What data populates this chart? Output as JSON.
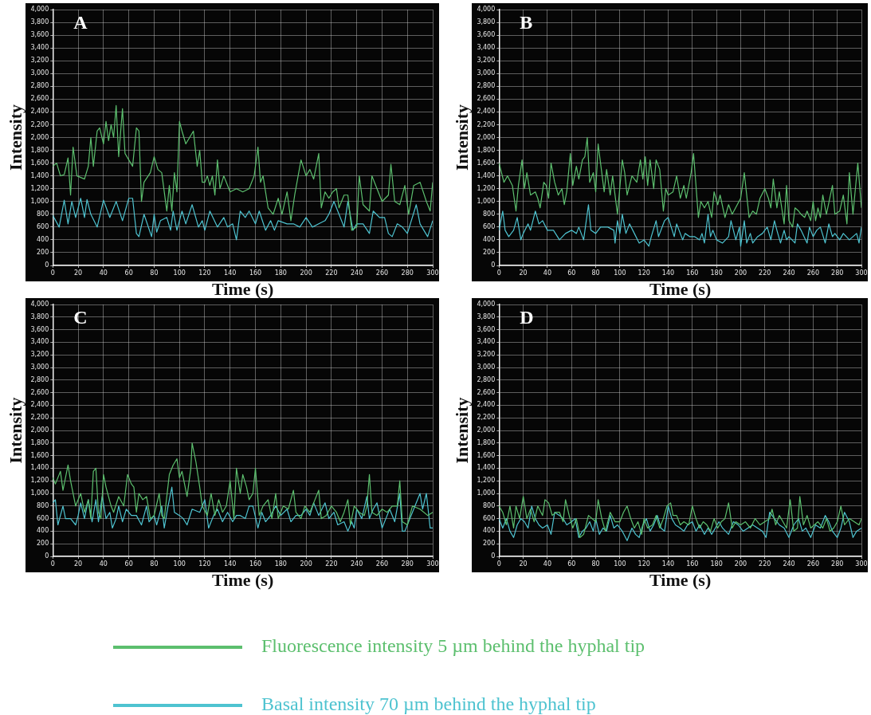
{
  "chart_data": [
    {
      "type": "line",
      "title": "A",
      "xlabel": "Time (s)",
      "ylabel": "Intensity",
      "xlim": [
        0,
        300
      ],
      "xticks": [
        0,
        20,
        40,
        60,
        80,
        100,
        120,
        140,
        160,
        180,
        200,
        220,
        240,
        260,
        280,
        300
      ],
      "ylim": [
        0,
        4000
      ],
      "yticks": [
        0,
        200,
        400,
        600,
        800,
        {
          "value": 1000,
          "label": "1,000"
        },
        {
          "value": 1200,
          "label": "1,200"
        },
        {
          "value": 1400,
          "label": "1,400"
        },
        {
          "value": 1600,
          "label": "1,600"
        },
        {
          "value": 1800,
          "label": "1,800"
        },
        {
          "value": 2000,
          "label": "2,000"
        },
        {
          "value": 2200,
          "label": "2,200"
        },
        {
          "value": 2400,
          "label": "2,400"
        },
        {
          "value": 2600,
          "label": "2,600"
        },
        {
          "value": 2800,
          "label": "2,800"
        },
        {
          "value": 3000,
          "label": "3,000"
        },
        {
          "value": 3200,
          "label": "3,200"
        },
        {
          "value": 3400,
          "label": "3,400"
        },
        {
          "value": 3600,
          "label": "3,600"
        },
        {
          "value": 3800,
          "label": "3,800"
        },
        {
          "value": 4000,
          "label": "4,000"
        }
      ],
      "grid": true,
      "marker": "none",
      "line_style": "solid",
      "legend": "bottom",
      "series": [
        {
          "name": "Fluorescence intensity 5 µm behind the hyphal tip",
          "color": "#5cbf6e",
          "x": [
            0,
            3,
            6,
            9,
            12,
            14,
            16,
            19,
            25,
            28,
            30,
            32,
            35,
            37,
            40,
            42,
            44,
            46,
            48,
            50,
            52,
            55,
            57,
            60,
            63,
            66,
            68,
            70,
            72,
            77,
            80,
            83,
            86,
            90,
            92,
            94,
            96,
            98,
            100,
            102,
            105,
            108,
            111,
            114,
            116,
            118,
            120,
            122,
            124,
            126,
            128,
            130,
            132,
            135,
            140,
            145,
            150,
            155,
            159,
            162,
            164,
            166,
            170,
            174,
            178,
            181,
            185,
            188,
            191,
            196,
            200,
            203,
            206,
            210,
            212,
            215,
            218,
            221,
            224,
            226,
            230,
            233,
            236,
            240,
            242,
            245,
            250,
            252,
            256,
            260,
            265,
            267,
            270,
            274,
            278,
            281,
            285,
            290,
            295,
            298,
            300
          ],
          "values": [
            1550,
            1600,
            1400,
            1420,
            1680,
            1100,
            1850,
            1400,
            1350,
            1550,
            2000,
            1550,
            2100,
            2150,
            1900,
            2250,
            1950,
            2200,
            2000,
            2500,
            1700,
            2450,
            1750,
            1650,
            1550,
            2150,
            2100,
            1000,
            1300,
            1450,
            1700,
            1500,
            1450,
            850,
            1250,
            850,
            1450,
            1150,
            2250,
            2100,
            1900,
            2000,
            2100,
            1550,
            1800,
            1300,
            1300,
            1400,
            1250,
            1400,
            1100,
            1650,
            1200,
            1400,
            1150,
            1200,
            1150,
            1200,
            1400,
            1850,
            1300,
            1400,
            900,
            800,
            1050,
            800,
            1150,
            700,
            1100,
            1650,
            1400,
            1500,
            1350,
            1750,
            900,
            1150,
            1050,
            1150,
            1200,
            900,
            1100,
            1100,
            550,
            600,
            1400,
            950,
            850,
            1400,
            1200,
            1000,
            1100,
            1580,
            1000,
            950,
            1250,
            800,
            1250,
            1300,
            1000,
            850,
            1300
          ]
        },
        {
          "name": "Basal intensity 70 µm behind the hyphal tip",
          "color": "#4ec3d0",
          "x": [
            0,
            5,
            9,
            12,
            15,
            18,
            22,
            25,
            27,
            30,
            35,
            40,
            45,
            50,
            55,
            60,
            63,
            66,
            68,
            72,
            78,
            80,
            82,
            85,
            90,
            93,
            95,
            98,
            102,
            105,
            110,
            115,
            118,
            120,
            124,
            130,
            135,
            138,
            142,
            145,
            148,
            152,
            155,
            160,
            163,
            168,
            172,
            175,
            178,
            185,
            190,
            195,
            200,
            205,
            210,
            215,
            218,
            222,
            226,
            230,
            233,
            237,
            240,
            245,
            250,
            253,
            258,
            262,
            265,
            268,
            272,
            276,
            280,
            287,
            290,
            296,
            300
          ],
          "values": [
            780,
            600,
            1020,
            650,
            1000,
            750,
            1050,
            750,
            1030,
            800,
            600,
            1020,
            750,
            1000,
            700,
            1050,
            1050,
            500,
            450,
            800,
            450,
            800,
            520,
            700,
            750,
            550,
            850,
            550,
            850,
            650,
            950,
            600,
            700,
            550,
            850,
            600,
            750,
            600,
            650,
            400,
            850,
            750,
            850,
            650,
            850,
            550,
            700,
            550,
            700,
            650,
            650,
            600,
            750,
            600,
            650,
            700,
            800,
            1000,
            800,
            600,
            1000,
            550,
            650,
            650,
            500,
            850,
            750,
            750,
            500,
            450,
            650,
            600,
            500,
            950,
            650,
            450,
            700
          ]
        }
      ]
    },
    {
      "type": "line",
      "title": "B",
      "xlabel": "Time (s)",
      "ylabel": "Intensity",
      "xlim": [
        0,
        300
      ],
      "xticks": [
        0,
        20,
        40,
        60,
        80,
        100,
        120,
        140,
        160,
        180,
        200,
        220,
        240,
        260,
        280,
        300
      ],
      "ylim": [
        0,
        4000
      ],
      "yticks": [
        0,
        200,
        400,
        600,
        800,
        {
          "value": 1000,
          "label": "1,000"
        },
        {
          "value": 1200,
          "label": "1,200"
        },
        {
          "value": 1400,
          "label": "1,400"
        },
        {
          "value": 1600,
          "label": "1,600"
        },
        {
          "value": 1800,
          "label": "1,800"
        },
        {
          "value": 2000,
          "label": "2,000"
        },
        {
          "value": 2200,
          "label": "2,200"
        },
        {
          "value": 2400,
          "label": "2,400"
        },
        {
          "value": 2600,
          "label": "2,600"
        },
        {
          "value": 2800,
          "label": "2,800"
        },
        {
          "value": 3000,
          "label": "3,000"
        },
        {
          "value": 3200,
          "label": "3,200"
        },
        {
          "value": 3400,
          "label": "3,400"
        },
        {
          "value": 3600,
          "label": "3,600"
        },
        {
          "value": 3800,
          "label": "3,800"
        },
        {
          "value": 4000,
          "label": "4,000"
        }
      ],
      "grid": true,
      "marker": "none",
      "line_style": "solid",
      "series": [
        {
          "color": "#5cbf6e",
          "x": [
            0,
            4,
            7,
            11,
            14,
            16,
            19,
            21,
            23,
            26,
            30,
            32,
            34,
            37,
            39,
            41,
            43,
            46,
            49,
            52,
            54,
            56,
            59,
            61,
            64,
            66,
            69,
            71,
            73,
            75,
            78,
            80,
            82,
            85,
            87,
            89,
            92,
            94,
            98,
            102,
            104,
            106,
            110,
            114,
            117,
            119,
            121,
            123,
            125,
            128,
            130,
            133,
            136,
            138,
            140,
            144,
            147,
            150,
            153,
            155,
            159,
            161,
            165,
            167,
            170,
            173,
            176,
            178,
            181,
            183,
            187,
            190,
            193,
            200,
            203,
            207,
            210,
            213,
            216,
            220,
            223,
            225,
            227,
            230,
            232,
            236,
            238,
            240,
            243,
            245,
            248,
            250,
            253,
            255,
            258,
            260,
            262,
            264,
            266,
            268,
            271,
            276,
            278,
            282,
            285,
            288,
            290,
            293,
            297,
            300
          ],
          "values": [
            1600,
            1300,
            1400,
            1250,
            850,
            1250,
            1650,
            1200,
            1450,
            1100,
            1150,
            1050,
            900,
            1300,
            1250,
            1050,
            1600,
            1300,
            1100,
            1200,
            950,
            1150,
            1750,
            1250,
            1550,
            1350,
            1650,
            1700,
            2000,
            1300,
            1450,
            1150,
            1900,
            1450,
            1150,
            1500,
            1100,
            1400,
            800,
            1650,
            1450,
            1100,
            1400,
            1300,
            1650,
            1350,
            1700,
            1250,
            1650,
            1200,
            1650,
            1500,
            850,
            1200,
            1100,
            1150,
            1400,
            1050,
            1250,
            1050,
            1450,
            1750,
            750,
            1000,
            900,
            1000,
            750,
            1150,
            950,
            1100,
            750,
            950,
            800,
            1050,
            1450,
            750,
            850,
            800,
            1050,
            1200,
            1050,
            900,
            1350,
            900,
            1150,
            650,
            1250,
            700,
            600,
            900,
            850,
            800,
            750,
            850,
            700,
            1000,
            700,
            900,
            750,
            1100,
            800,
            1250,
            800,
            850,
            1100,
            650,
            1450,
            800,
            1600,
            900
          ]
        },
        {
          "color": "#4ec3d0",
          "x": [
            0,
            3,
            5,
            8,
            12,
            15,
            18,
            20,
            24,
            26,
            30,
            33,
            36,
            40,
            45,
            50,
            55,
            60,
            64,
            66,
            70,
            74,
            76,
            80,
            84,
            90,
            95,
            96,
            98,
            100,
            102,
            105,
            108,
            112,
            116,
            120,
            124,
            126,
            130,
            132,
            137,
            140,
            145,
            147,
            152,
            154,
            158,
            162,
            166,
            168,
            170,
            173,
            175,
            177,
            180,
            185,
            190,
            192,
            196,
            199,
            200,
            203,
            205,
            208,
            210,
            214,
            218,
            222,
            225,
            228,
            230,
            233,
            236,
            238,
            240,
            245,
            247,
            250,
            255,
            257,
            260,
            263,
            266,
            270,
            273,
            276,
            278,
            282,
            285,
            290,
            296,
            298,
            300
          ],
          "values": [
            550,
            850,
            550,
            450,
            550,
            750,
            400,
            500,
            650,
            550,
            850,
            650,
            700,
            550,
            550,
            400,
            500,
            550,
            500,
            600,
            400,
            950,
            550,
            500,
            600,
            600,
            550,
            350,
            700,
            500,
            800,
            500,
            650,
            500,
            350,
            400,
            300,
            450,
            700,
            450,
            700,
            750,
            450,
            650,
            400,
            500,
            450,
            450,
            400,
            500,
            350,
            800,
            450,
            550,
            400,
            350,
            450,
            700,
            400,
            600,
            300,
            700,
            350,
            500,
            350,
            450,
            500,
            600,
            400,
            700,
            550,
            350,
            550,
            400,
            450,
            350,
            650,
            550,
            350,
            600,
            450,
            550,
            600,
            350,
            650,
            450,
            500,
            400,
            500,
            400,
            500,
            350,
            600
          ]
        }
      ]
    },
    {
      "type": "line",
      "title": "C",
      "xlabel": "Time (s)",
      "ylabel": "Intensity",
      "xlim": [
        0,
        300
      ],
      "xticks": [
        0,
        20,
        40,
        60,
        80,
        100,
        120,
        140,
        160,
        180,
        200,
        220,
        240,
        260,
        280,
        300
      ],
      "ylim": [
        0,
        4000
      ],
      "yticks": [
        0,
        200,
        400,
        600,
        800,
        {
          "value": 1000,
          "label": "1,000"
        },
        {
          "value": 1200,
          "label": "1,200"
        },
        {
          "value": 1400,
          "label": "1,400"
        },
        {
          "value": 1600,
          "label": "1,600"
        },
        {
          "value": 1800,
          "label": "1,800"
        },
        {
          "value": 2000,
          "label": "2,000"
        },
        {
          "value": 2200,
          "label": "2,200"
        },
        {
          "value": 2400,
          "label": "2,400"
        },
        {
          "value": 2600,
          "label": "2,600"
        },
        {
          "value": 2800,
          "label": "2,800"
        },
        {
          "value": 3000,
          "label": "3,000"
        },
        {
          "value": 3200,
          "label": "3,200"
        },
        {
          "value": 3400,
          "label": "3,400"
        },
        {
          "value": 3600,
          "label": "3,600"
        },
        {
          "value": 3800,
          "label": "3,800"
        },
        {
          "value": 4000,
          "label": "4,000"
        }
      ],
      "grid": true,
      "marker": "none",
      "line_style": "solid",
      "series": [
        {
          "color": "#5cbf6e",
          "x": [
            0,
            2,
            6,
            8,
            12,
            14,
            18,
            22,
            25,
            28,
            30,
            32,
            34,
            36,
            38,
            40,
            42,
            46,
            48,
            52,
            56,
            59,
            62,
            64,
            66,
            68,
            71,
            74,
            77,
            80,
            84,
            86,
            88,
            92,
            95,
            98,
            100,
            102,
            106,
            109,
            110,
            113,
            116,
            118,
            122,
            125,
            128,
            131,
            134,
            137,
            140,
            143,
            145,
            148,
            150,
            153,
            155,
            158,
            160,
            163,
            166,
            170,
            173,
            176,
            178,
            182,
            186,
            190,
            192,
            196,
            199,
            203,
            206,
            210,
            212,
            216,
            220,
            224,
            227,
            230,
            233,
            235,
            238,
            242,
            246,
            248,
            250,
            252,
            256,
            260,
            264,
            268,
            272,
            274,
            276,
            280,
            284,
            290,
            296,
            300
          ],
          "values": [
            1250,
            1150,
            1350,
            1050,
            1450,
            1200,
            800,
            1000,
            700,
            900,
            600,
            1350,
            1400,
            700,
            600,
            1300,
            1100,
            800,
            700,
            950,
            800,
            1300,
            1150,
            1100,
            700,
            1000,
            900,
            950,
            600,
            650,
            1000,
            650,
            600,
            1300,
            1450,
            1550,
            1250,
            1350,
            950,
            1400,
            1800,
            1500,
            1100,
            800,
            650,
            1000,
            650,
            900,
            700,
            800,
            1200,
            600,
            1400,
            1000,
            1300,
            1100,
            900,
            1000,
            1400,
            650,
            800,
            900,
            600,
            1000,
            600,
            800,
            750,
            1050,
            700,
            600,
            800,
            700,
            850,
            1050,
            600,
            650,
            800,
            700,
            550,
            700,
            900,
            500,
            800,
            700,
            650,
            800,
            1300,
            700,
            650,
            750,
            700,
            800,
            800,
            1200,
            550,
            500,
            800,
            750,
            650,
            700
          ]
        },
        {
          "color": "#4ec3d0",
          "x": [
            0,
            2,
            4,
            8,
            10,
            14,
            18,
            20,
            22,
            25,
            28,
            31,
            34,
            36,
            39,
            42,
            45,
            47,
            50,
            52,
            55,
            58,
            62,
            66,
            70,
            74,
            76,
            80,
            82,
            86,
            88,
            91,
            94,
            96,
            100,
            103,
            106,
            110,
            116,
            120,
            123,
            127,
            130,
            134,
            138,
            142,
            145,
            148,
            152,
            155,
            158,
            162,
            165,
            168,
            172,
            176,
            180,
            185,
            188,
            192,
            196,
            200,
            203,
            206,
            210,
            215,
            218,
            222,
            225,
            230,
            233,
            236,
            238,
            240,
            244,
            248,
            250,
            253,
            256,
            260,
            263,
            266,
            270,
            274,
            276,
            278,
            282,
            286,
            290,
            292,
            295,
            298,
            300
          ],
          "values": [
            850,
            900,
            500,
            800,
            600,
            600,
            500,
            650,
            850,
            600,
            900,
            550,
            900,
            550,
            950,
            600,
            700,
            450,
            600,
            800,
            550,
            750,
            650,
            650,
            500,
            800,
            550,
            650,
            500,
            800,
            450,
            800,
            1100,
            700,
            650,
            600,
            500,
            750,
            700,
            900,
            450,
            650,
            750,
            550,
            700,
            550,
            650,
            650,
            600,
            800,
            800,
            450,
            700,
            550,
            650,
            800,
            650,
            750,
            550,
            650,
            650,
            750,
            650,
            850,
            650,
            850,
            600,
            700,
            500,
            550,
            400,
            550,
            450,
            750,
            600,
            950,
            600,
            750,
            850,
            450,
            600,
            750,
            550,
            1000,
            400,
            400,
            600,
            800,
            1000,
            750,
            1000,
            450,
            450
          ]
        }
      ]
    },
    {
      "type": "line",
      "title": "D",
      "xlabel": "Time (s)",
      "ylabel": "Intensity",
      "xlim": [
        0,
        300
      ],
      "xticks": [
        0,
        20,
        40,
        60,
        80,
        100,
        120,
        140,
        160,
        180,
        200,
        220,
        240,
        260,
        280,
        300
      ],
      "ylim": [
        0,
        4000
      ],
      "yticks": [
        0,
        200,
        400,
        600,
        800,
        {
          "value": 1000,
          "label": "1,000"
        },
        {
          "value": 1200,
          "label": "1,200"
        },
        {
          "value": 1400,
          "label": "1,400"
        },
        {
          "value": 1600,
          "label": "1,600"
        },
        {
          "value": 1800,
          "label": "1,800"
        },
        {
          "value": 2000,
          "label": "2,000"
        },
        {
          "value": 2200,
          "label": "2,200"
        },
        {
          "value": 2400,
          "label": "2,400"
        },
        {
          "value": 2600,
          "label": "2,600"
        },
        {
          "value": 2800,
          "label": "2,800"
        },
        {
          "value": 3000,
          "label": "3,000"
        },
        {
          "value": 3200,
          "label": "3,200"
        },
        {
          "value": 3400,
          "label": "3,400"
        },
        {
          "value": 3600,
          "label": "3,600"
        },
        {
          "value": 3800,
          "label": "3,800"
        },
        {
          "value": 4000,
          "label": "4,000"
        }
      ],
      "grid": true,
      "marker": "none",
      "line_style": "solid",
      "series": [
        {
          "color": "#5cbf6e",
          "x": [
            0,
            3,
            6,
            9,
            12,
            14,
            17,
            20,
            23,
            26,
            29,
            32,
            36,
            38,
            41,
            44,
            47,
            50,
            53,
            55,
            58,
            61,
            64,
            67,
            70,
            74,
            77,
            80,
            82,
            85,
            88,
            92,
            96,
            100,
            103,
            106,
            109,
            112,
            115,
            118,
            120,
            123,
            127,
            130,
            133,
            136,
            139,
            142,
            144,
            147,
            150,
            153,
            157,
            160,
            163,
            166,
            169,
            172,
            175,
            178,
            181,
            184,
            187,
            190,
            193,
            196,
            200,
            204,
            208,
            212,
            216,
            220,
            224,
            226,
            229,
            232,
            235,
            238,
            241,
            244,
            247,
            249,
            252,
            255,
            258,
            261,
            264,
            268,
            271,
            274,
            277,
            280,
            283,
            286,
            290,
            294,
            298,
            300
          ],
          "values": [
            800,
            700,
            500,
            800,
            450,
            800,
            600,
            950,
            600,
            750,
            550,
            800,
            650,
            900,
            850,
            650,
            700,
            700,
            550,
            900,
            650,
            450,
            600,
            300,
            350,
            650,
            600,
            550,
            900,
            600,
            400,
            700,
            550,
            550,
            700,
            800,
            600,
            450,
            550,
            350,
            600,
            450,
            500,
            650,
            450,
            600,
            800,
            850,
            650,
            650,
            500,
            550,
            500,
            800,
            600,
            450,
            550,
            500,
            400,
            600,
            450,
            550,
            600,
            850,
            450,
            550,
            500,
            550,
            450,
            600,
            500,
            550,
            600,
            750,
            500,
            650,
            550,
            450,
            900,
            400,
            450,
            950,
            500,
            650,
            450,
            500,
            550,
            450,
            600,
            400,
            450,
            550,
            800,
            500,
            600,
            550,
            500,
            600
          ]
        },
        {
          "color": "#4ec3d0",
          "x": [
            0,
            3,
            6,
            9,
            12,
            15,
            18,
            21,
            24,
            27,
            30,
            33,
            36,
            40,
            43,
            46,
            50,
            53,
            56,
            60,
            63,
            66,
            69,
            72,
            75,
            78,
            80,
            83,
            86,
            89,
            92,
            95,
            98,
            102,
            106,
            110,
            113,
            116,
            119,
            122,
            125,
            128,
            131,
            134,
            137,
            140,
            143,
            146,
            150,
            153,
            156,
            160,
            163,
            166,
            170,
            173,
            176,
            179,
            182,
            185,
            190,
            194,
            198,
            202,
            206,
            210,
            214,
            218,
            221,
            224,
            228,
            232,
            236,
            240,
            244,
            248,
            251,
            254,
            258,
            262,
            266,
            270,
            273,
            276,
            280,
            283,
            286,
            290,
            293,
            296,
            300
          ],
          "values": [
            600,
            450,
            600,
            400,
            300,
            500,
            600,
            550,
            450,
            800,
            600,
            500,
            450,
            500,
            350,
            700,
            650,
            600,
            500,
            550,
            600,
            300,
            400,
            450,
            550,
            400,
            600,
            350,
            450,
            400,
            650,
            450,
            500,
            400,
            250,
            450,
            350,
            300,
            500,
            600,
            400,
            500,
            650,
            450,
            400,
            800,
            600,
            500,
            450,
            400,
            500,
            550,
            400,
            500,
            350,
            450,
            350,
            450,
            550,
            450,
            350,
            550,
            500,
            400,
            450,
            500,
            450,
            400,
            300,
            700,
            600,
            500,
            450,
            300,
            500,
            600,
            400,
            450,
            300,
            500,
            450,
            650,
            550,
            400,
            300,
            450,
            700,
            550,
            300,
            400,
            450
          ]
        }
      ]
    }
  ]
}
